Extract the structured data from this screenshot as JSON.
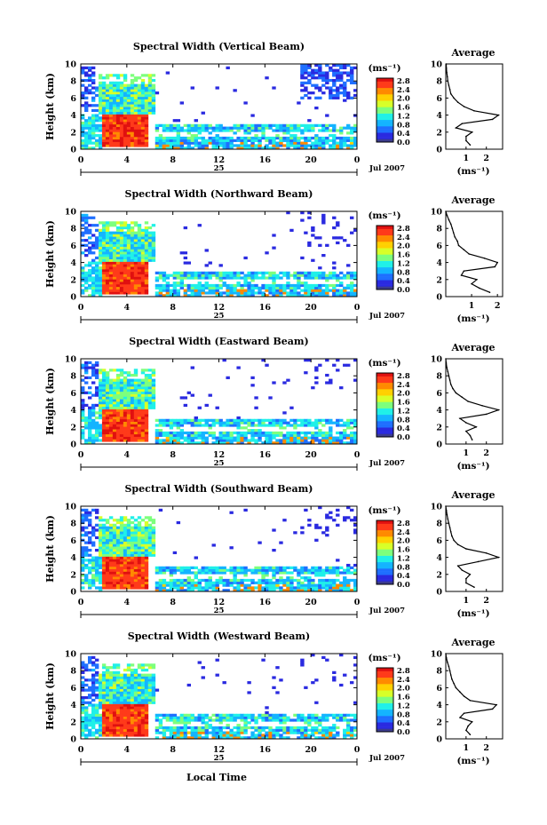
{
  "figure": {
    "date_label": "Jul 2007",
    "bottom_xlabel": "Local Time",
    "colorbar_unit": "(ms⁻¹)",
    "colorbar_ticks": [
      "0.0",
      "0.4",
      "0.8",
      "1.2",
      "1.6",
      "2.0",
      "2.4",
      "2.8"
    ],
    "colormap": [
      "#3b3b8f",
      "#2a2ae0",
      "#1f6fff",
      "#14b4ff",
      "#20f0e8",
      "#7dff7d",
      "#d8ff28",
      "#ffd000",
      "#ff8a00",
      "#ff3a1a",
      "#e01010"
    ]
  },
  "chart_data": [
    {
      "type": "heatmap",
      "title": "Spectral Width (Vertical Beam)",
      "ylabel": "Height (km)",
      "xlim": [
        0,
        24
      ],
      "ylim": [
        0,
        10
      ],
      "x_ticks": [
        "0",
        "4",
        "8",
        "12",
        "16",
        "20",
        "0"
      ],
      "y_ticks": [
        "0",
        "2",
        "4",
        "6",
        "8",
        "10"
      ],
      "day_label": "25",
      "colorbar_range": [
        0.0,
        2.8
      ],
      "profile": {
        "type": "line",
        "title": "Average",
        "xlabel": "(ms⁻¹)",
        "x_ticks": [
          "1",
          "2"
        ],
        "xlim": [
          0,
          2.8
        ],
        "ylim": [
          0,
          10
        ],
        "height_km": [
          0.5,
          1.0,
          1.5,
          2.0,
          2.5,
          3.0,
          3.5,
          4.0,
          4.5,
          5.0,
          5.5,
          6.0,
          6.5,
          7.0,
          7.5,
          8.0,
          8.5,
          9.0,
          9.5,
          10.0
        ],
        "width_ms": [
          1.2,
          1.0,
          1.0,
          1.3,
          0.5,
          0.8,
          2.3,
          2.6,
          1.4,
          0.9,
          0.6,
          0.4,
          0.25,
          0.2,
          0.15,
          0.1,
          0.08,
          0.05,
          0.03,
          0.02
        ]
      }
    },
    {
      "type": "heatmap",
      "title": "Spectral Width (Northward Beam)",
      "ylabel": "Height (km)",
      "xlim": [
        0,
        24
      ],
      "ylim": [
        0,
        10
      ],
      "x_ticks": [
        "0",
        "4",
        "8",
        "12",
        "16",
        "20",
        "0"
      ],
      "y_ticks": [
        "0",
        "2",
        "4",
        "6",
        "8",
        "10"
      ],
      "day_label": "25",
      "colorbar_range": [
        0.0,
        2.8
      ],
      "profile": {
        "type": "line",
        "title": "Average",
        "xlabel": "(ms⁻¹)",
        "x_ticks": [
          "1",
          "2"
        ],
        "xlim": [
          0,
          2.2
        ],
        "ylim": [
          0,
          10
        ],
        "height_km": [
          0.5,
          1.0,
          1.5,
          2.0,
          2.5,
          3.0,
          3.5,
          4.0,
          4.5,
          5.0,
          5.5,
          6.0,
          6.5,
          7.0,
          7.5,
          8.0,
          8.5,
          9.0,
          9.5,
          10.0
        ],
        "width_ms": [
          1.7,
          1.3,
          1.0,
          1.2,
          0.6,
          0.7,
          1.9,
          2.0,
          1.5,
          0.9,
          0.7,
          0.5,
          0.45,
          0.35,
          0.3,
          0.25,
          0.2,
          0.12,
          0.05,
          0.0
        ]
      }
    },
    {
      "type": "heatmap",
      "title": "Spectral Width (Eastward Beam)",
      "ylabel": "Height (km)",
      "xlim": [
        0,
        24
      ],
      "ylim": [
        0,
        10
      ],
      "x_ticks": [
        "0",
        "4",
        "8",
        "12",
        "16",
        "20",
        "0"
      ],
      "y_ticks": [
        "0",
        "2",
        "4",
        "6",
        "8",
        "10"
      ],
      "day_label": "25",
      "colorbar_range": [
        0.0,
        2.8
      ],
      "profile": {
        "type": "line",
        "title": "Average",
        "xlabel": "(ms⁻¹)",
        "x_ticks": [
          "1",
          "2"
        ],
        "xlim": [
          0,
          2.8
        ],
        "ylim": [
          0,
          10
        ],
        "height_km": [
          0.5,
          1.0,
          1.5,
          2.0,
          2.5,
          3.0,
          3.5,
          4.0,
          4.5,
          5.0,
          5.5,
          6.0,
          6.5,
          7.0,
          7.5,
          8.0,
          8.5,
          9.0,
          9.5,
          10.0
        ],
        "width_ms": [
          1.3,
          1.2,
          1.0,
          1.5,
          1.0,
          0.7,
          2.0,
          2.6,
          1.8,
          1.1,
          0.8,
          0.5,
          0.35,
          0.25,
          0.2,
          0.15,
          0.1,
          0.05,
          0.02,
          0.0
        ]
      }
    },
    {
      "type": "heatmap",
      "title": "Spectral Width (Southward Beam)",
      "ylabel": "Height (km)",
      "xlim": [
        0,
        24
      ],
      "ylim": [
        0,
        10
      ],
      "x_ticks": [
        "0",
        "4",
        "8",
        "12",
        "16",
        "20",
        "0"
      ],
      "y_ticks": [
        "0",
        "2",
        "4",
        "6",
        "8",
        "10"
      ],
      "day_label": "25",
      "colorbar_range": [
        0.0,
        2.8
      ],
      "profile": {
        "type": "line",
        "title": "Average",
        "xlabel": "(ms⁻¹)",
        "x_ticks": [
          "1",
          "2"
        ],
        "xlim": [
          0,
          2.8
        ],
        "ylim": [
          0,
          10
        ],
        "height_km": [
          0.5,
          1.0,
          1.5,
          2.0,
          2.5,
          3.0,
          3.5,
          4.0,
          4.5,
          5.0,
          5.5,
          6.0,
          6.5,
          7.0,
          7.5,
          8.0,
          8.5,
          9.0,
          9.5,
          10.0
        ],
        "width_ms": [
          1.4,
          1.0,
          1.0,
          1.2,
          0.8,
          0.6,
          1.6,
          2.6,
          2.0,
          1.0,
          0.6,
          0.4,
          0.3,
          0.25,
          0.2,
          0.15,
          0.1,
          0.06,
          0.03,
          0.0
        ]
      }
    },
    {
      "type": "heatmap",
      "title": "Spectral Width (Westward Beam)",
      "ylabel": "Height (km)",
      "xlim": [
        0,
        24
      ],
      "ylim": [
        0,
        10
      ],
      "x_ticks": [
        "0",
        "4",
        "8",
        "12",
        "16",
        "20",
        "0"
      ],
      "y_ticks": [
        "0",
        "2",
        "4",
        "6",
        "8",
        "10"
      ],
      "day_label": "25",
      "colorbar_range": [
        0.0,
        2.8
      ],
      "profile": {
        "type": "line",
        "title": "Average",
        "xlabel": "(ms⁻¹)",
        "x_ticks": [
          "1",
          "2"
        ],
        "xlim": [
          0,
          2.8
        ],
        "ylim": [
          0,
          10
        ],
        "height_km": [
          0.5,
          1.0,
          1.5,
          2.0,
          2.5,
          3.0,
          3.5,
          4.0,
          4.5,
          5.0,
          5.5,
          6.0,
          6.5,
          7.0,
          7.5,
          8.0,
          8.5,
          9.0,
          9.5,
          10.0
        ],
        "width_ms": [
          1.2,
          1.0,
          1.1,
          1.3,
          0.7,
          0.9,
          2.3,
          2.5,
          1.2,
          0.9,
          0.7,
          0.5,
          0.4,
          0.3,
          0.25,
          0.2,
          0.15,
          0.08,
          0.03,
          0.0
        ]
      }
    }
  ]
}
